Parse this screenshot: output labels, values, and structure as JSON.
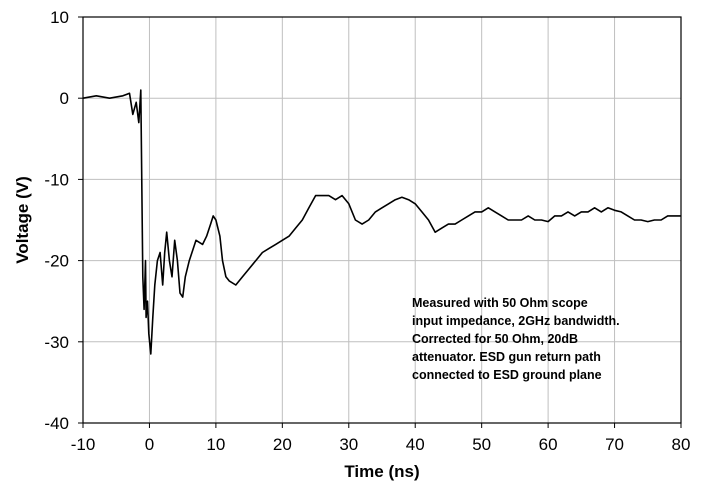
{
  "chart_data": {
    "type": "line",
    "title": "",
    "xlabel": "Time (ns)",
    "ylabel": "Voltage (V)",
    "xlim": [
      -10,
      80
    ],
    "ylim": [
      -40,
      10
    ],
    "xticks": [
      -10,
      0,
      10,
      20,
      30,
      40,
      50,
      60,
      70,
      80
    ],
    "yticks": [
      10,
      0,
      -10,
      -20,
      -30,
      -40
    ],
    "grid": true,
    "legend": "none",
    "colors": {
      "line": "#000000",
      "grid": "#bfbfbf",
      "frame": "#000000"
    },
    "annotation": [
      "Measured with 50 Ohm scope",
      "input impedance, 2GHz bandwidth.",
      "Corrected for 50 Ohm, 20dB",
      "attenuator. ESD gun return path",
      "connected to ESD ground plane"
    ],
    "series": [
      {
        "x": [
          -10,
          -8,
          -6,
          -4,
          -3,
          -2.5,
          -2,
          -1.6,
          -1.3,
          -1,
          -0.8,
          -0.6,
          -0.5,
          -0.3,
          -0.1,
          0.2,
          0.5,
          0.8,
          1.2,
          1.6,
          2,
          2.3,
          2.6,
          3,
          3.4,
          3.8,
          4.2,
          4.6,
          5.0,
          5.4,
          6,
          7,
          8,
          8.6,
          9.2,
          9.6,
          10,
          10.6,
          11,
          11.5,
          12,
          13,
          14,
          15,
          16,
          17,
          18,
          19,
          20,
          21,
          22,
          23,
          24,
          25,
          26,
          27,
          28,
          29,
          30,
          31,
          32,
          33,
          34,
          35,
          36,
          37,
          38,
          39,
          40,
          41,
          42,
          43,
          44,
          45,
          46,
          47,
          48,
          49,
          50,
          51,
          52,
          53,
          54,
          55,
          56,
          57,
          58,
          59,
          60,
          61,
          62,
          63,
          64,
          65,
          66,
          67,
          68,
          69,
          70,
          71,
          72,
          73,
          74,
          75,
          76,
          77,
          78,
          79,
          80
        ],
        "y": [
          0,
          0.3,
          0,
          0.3,
          0.6,
          -2,
          -0.5,
          -3,
          1,
          -22,
          -26,
          -20,
          -27,
          -25,
          -29,
          -31.5,
          -27,
          -23,
          -20,
          -19,
          -23,
          -19,
          -16.5,
          -20,
          -22,
          -17.5,
          -20,
          -24,
          -24.5,
          -22,
          -20,
          -17.5,
          -18,
          -17,
          -15.5,
          -14.5,
          -15,
          -17,
          -20,
          -22,
          -22.5,
          -23,
          -22,
          -21,
          -20,
          -19,
          -18.5,
          -18,
          -17.5,
          -17,
          -16,
          -15,
          -13.5,
          -12,
          -12,
          -12,
          -12.5,
          -12,
          -13,
          -15,
          -15.5,
          -15,
          -14,
          -13.5,
          -13,
          -12.5,
          -12.2,
          -12.5,
          -13,
          -14,
          -15,
          -16.5,
          -16,
          -15.5,
          -15.5,
          -15,
          -14.5,
          -14,
          -14,
          -13.5,
          -14,
          -14.5,
          -15,
          -15,
          -15,
          -14.5,
          -15,
          -15,
          -15.2,
          -14.5,
          -14.5,
          -14,
          -14.5,
          -14,
          -14,
          -13.5,
          -14,
          -13.5,
          -13.8,
          -14,
          -14.5,
          -15,
          -15,
          -15.2,
          -15,
          -15,
          -14.5,
          -14.5,
          -14.5
        ]
      }
    ]
  }
}
